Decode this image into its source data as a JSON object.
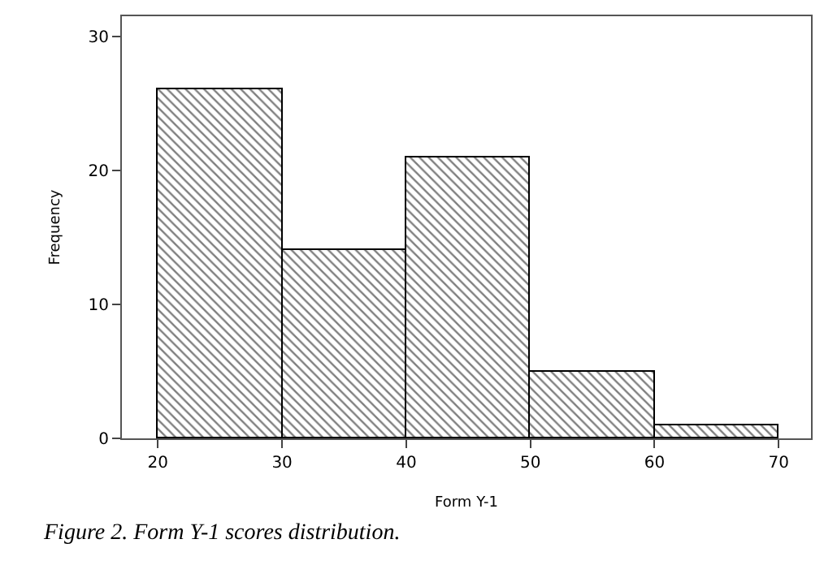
{
  "chart_data": {
    "type": "histogram",
    "bins": [
      20,
      30,
      40,
      50,
      60,
      70
    ],
    "values": [
      26,
      14,
      21,
      5,
      1
    ],
    "color": "#000000",
    "xlabel": "Form Y-1",
    "ylabel": "Frequency",
    "xlim": [
      17.1,
      72.6
    ],
    "xticks": [
      20,
      30,
      40,
      50,
      60,
      70
    ],
    "ylim": [
      0,
      31.5
    ],
    "yticks": [
      0,
      10,
      20,
      30
    ],
    "annotations": [
      "Figure 2. Form Y-1 scores distribution."
    ]
  }
}
